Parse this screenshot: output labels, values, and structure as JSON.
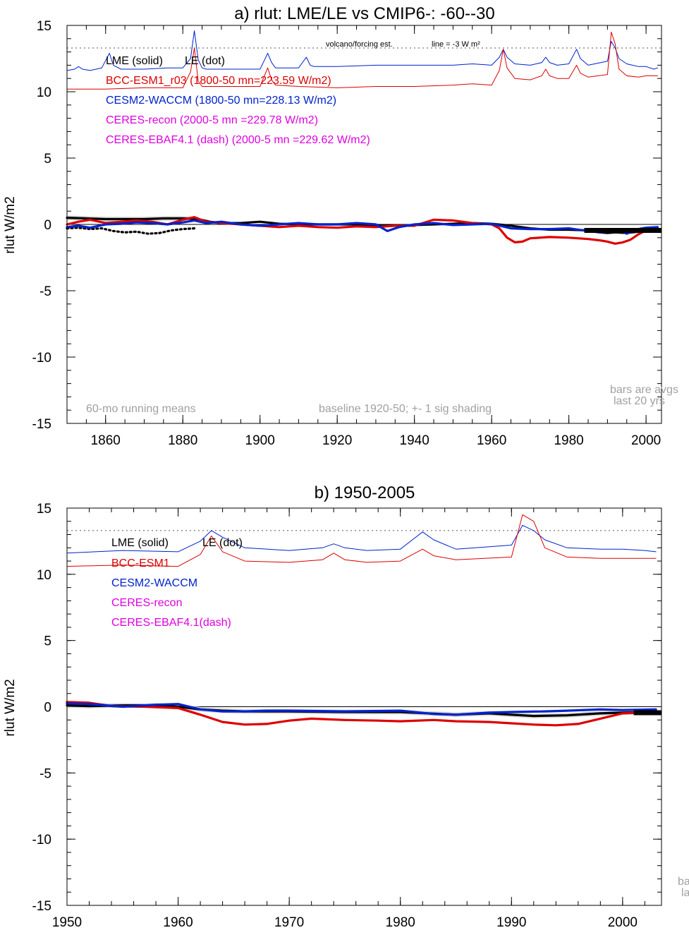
{
  "colors": {
    "lme": "#000000",
    "bcc": "#dd0000",
    "cesm": "#0022cc",
    "ceres": "#e000e0",
    "annot": "#a0a0a0",
    "shade": "#cfcfcf"
  },
  "chart_data": [
    {
      "type": "line",
      "title": "a) rlut: LME/LE vs CMIP6-: -60--30",
      "ylabel": "rlut W/m2",
      "xlim": [
        1850,
        2004
      ],
      "ylim": [
        -15,
        15
      ],
      "xticks": [
        1860,
        1880,
        1900,
        1920,
        1940,
        1960,
        1980,
        2000
      ],
      "yticks": [
        15,
        10,
        5,
        0,
        -5,
        -10,
        -15
      ],
      "ytick_labels": [
        "15",
        "10",
        "5",
        "0",
        "-5",
        "-10",
        "-15"
      ],
      "reference_line": 13.3,
      "reference_label_left": "volcano/forcing est.",
      "reference_label_right": "line = -3 W m²",
      "legend": {
        "header_lme": "LME (solid)",
        "header_le": "LE (dot)",
        "bcc": "BCC-ESM1_r03 (1800-50 mn=223.59 W/m2)",
        "cesm": "CESM2-WACCM (1800-50 mn=228.13 W/m2)",
        "ceres_recon": "CERES-recon (2000-5 mn =229.78 W/m2)",
        "ceres_ebaf": "CERES-EBAF4.1 (dash) (2000-5 mn =229.62 W/m2)"
      },
      "notes": {
        "running": "60-mo running means",
        "baseline": "baseline 1920-50; +- 1 sig shading",
        "bars1": "bars are avgs",
        "bars2": "last 20 yrs"
      },
      "series": [
        {
          "name": "LME (solid)",
          "color_key": "lme",
          "width": 3.2,
          "x": [
            1850,
            1855,
            1860,
            1865,
            1870,
            1875,
            1880,
            1884,
            1887,
            1890,
            1895,
            1900,
            1905,
            1910,
            1915,
            1920,
            1925,
            1930,
            1935,
            1940,
            1945,
            1950,
            1955,
            1960,
            1965,
            1970,
            1975,
            1980,
            1985,
            1988,
            1990,
            1992,
            1995,
            1998,
            2000,
            2003
          ],
          "y": [
            0.5,
            0.45,
            0.4,
            0.4,
            0.4,
            0.45,
            0.45,
            0.4,
            0.2,
            0.1,
            0.1,
            0.2,
            0.05,
            0.0,
            0.0,
            0.0,
            0.0,
            -0.05,
            -0.1,
            -0.05,
            0.0,
            0.05,
            0.1,
            0.05,
            -0.1,
            -0.3,
            -0.4,
            -0.4,
            -0.45,
            -0.6,
            -0.65,
            -0.6,
            -0.65,
            -0.55,
            -0.5,
            -0.45
          ]
        },
        {
          "name": "LE (dot)",
          "color_key": "lme",
          "width": 3.2,
          "dash": "2 4",
          "x": [
            1850,
            1853,
            1856,
            1859,
            1862,
            1865,
            1868,
            1871,
            1874,
            1877,
            1880,
            1883
          ],
          "y": [
            -0.3,
            -0.25,
            -0.35,
            -0.3,
            -0.5,
            -0.6,
            -0.55,
            -0.7,
            -0.65,
            -0.45,
            -0.35,
            -0.3
          ]
        },
        {
          "name": "BCC-ESM1",
          "color_key": "bcc",
          "width": 3.2,
          "x": [
            1850,
            1853,
            1856,
            1860,
            1864,
            1868,
            1872,
            1876,
            1880,
            1883,
            1886,
            1890,
            1895,
            1900,
            1905,
            1910,
            1915,
            1920,
            1925,
            1930,
            1935,
            1940,
            1945,
            1950,
            1955,
            1960,
            1962,
            1964,
            1966,
            1968,
            1970,
            1975,
            1980,
            1985,
            1988,
            1990,
            1992,
            1994,
            1996,
            1998,
            2000,
            2003
          ],
          "y": [
            0.0,
            0.2,
            0.35,
            0.1,
            0.2,
            0.3,
            0.2,
            0.0,
            0.35,
            0.55,
            0.2,
            0.1,
            0.0,
            -0.1,
            -0.2,
            -0.1,
            -0.2,
            -0.25,
            -0.15,
            -0.2,
            -0.1,
            -0.1,
            0.35,
            0.3,
            0.1,
            0.0,
            -0.3,
            -1.0,
            -1.35,
            -1.3,
            -1.05,
            -0.95,
            -1.0,
            -1.1,
            -1.2,
            -1.3,
            -1.45,
            -1.35,
            -1.15,
            -0.75,
            -0.45,
            -0.35
          ]
        },
        {
          "name": "CESM2-WACCM",
          "color_key": "cesm",
          "width": 3.2,
          "x": [
            1850,
            1853,
            1856,
            1860,
            1864,
            1868,
            1872,
            1876,
            1880,
            1883,
            1886,
            1890,
            1895,
            1900,
            1905,
            1910,
            1915,
            1920,
            1925,
            1930,
            1933,
            1936,
            1940,
            1945,
            1950,
            1955,
            1960,
            1965,
            1970,
            1975,
            1980,
            1985,
            1988,
            1990,
            1993,
            1995,
            1998,
            2000,
            2003
          ],
          "y": [
            -0.2,
            -0.1,
            -0.25,
            0.0,
            0.05,
            0.15,
            0.1,
            0.0,
            0.15,
            0.3,
            0.1,
            0.2,
            0.0,
            -0.1,
            0.0,
            0.1,
            0.0,
            0.0,
            0.1,
            0.0,
            -0.5,
            -0.2,
            0.0,
            0.1,
            -0.05,
            0.0,
            0.05,
            -0.3,
            -0.35,
            -0.35,
            -0.3,
            -0.5,
            -0.6,
            -0.55,
            -0.4,
            -0.7,
            -0.35,
            -0.25,
            -0.2
          ]
        },
        {
          "name": "CESM2-WACCM forcing",
          "color_key": "cesm",
          "width": 1,
          "x": [
            1850,
            1852,
            1853,
            1854,
            1856,
            1859,
            1861,
            1862,
            1864,
            1870,
            1876,
            1880,
            1882,
            1883,
            1884,
            1885,
            1886,
            1890,
            1900,
            1901,
            1902,
            1903,
            1904,
            1910,
            1912,
            1913,
            1914,
            1920,
            1930,
            1940,
            1950,
            1955,
            1960,
            1962,
            1963,
            1964,
            1966,
            1970,
            1973,
            1974,
            1975,
            1977,
            1980,
            1982,
            1983,
            1985,
            1990,
            1991,
            1992,
            1993,
            1995,
            1998,
            2000,
            2002,
            2003
          ],
          "y": [
            11.6,
            11.7,
            11.9,
            11.7,
            11.6,
            11.8,
            12.9,
            12.0,
            11.7,
            11.7,
            11.8,
            11.8,
            12.5,
            14.6,
            12.4,
            11.8,
            11.7,
            11.7,
            11.7,
            12.3,
            12.9,
            12.2,
            11.8,
            11.8,
            12.6,
            12.0,
            11.9,
            11.9,
            12.0,
            12.0,
            12.0,
            12.1,
            12.0,
            12.6,
            13.2,
            12.6,
            12.1,
            12.0,
            12.2,
            12.6,
            12.2,
            12.0,
            12.1,
            13.2,
            12.5,
            12.0,
            12.3,
            13.8,
            13.3,
            12.5,
            12.1,
            11.9,
            11.9,
            11.7,
            11.8
          ]
        },
        {
          "name": "BCC-ESM1 forcing",
          "color_key": "bcc",
          "width": 1,
          "x": [
            1850,
            1860,
            1870,
            1880,
            1882,
            1883,
            1884,
            1885,
            1886,
            1890,
            1900,
            1902,
            1903,
            1904,
            1910,
            1920,
            1930,
            1940,
            1950,
            1955,
            1960,
            1962,
            1963,
            1964,
            1966,
            1970,
            1973,
            1974,
            1975,
            1977,
            1980,
            1982,
            1983,
            1985,
            1990,
            1991,
            1992,
            1993,
            1995,
            1998,
            2000,
            2003
          ],
          "y": [
            10.2,
            10.2,
            10.3,
            10.3,
            11.5,
            13.3,
            10.8,
            10.4,
            10.4,
            10.4,
            10.4,
            11.8,
            10.9,
            10.5,
            10.4,
            10.3,
            10.4,
            10.4,
            10.5,
            10.6,
            10.5,
            11.6,
            13.2,
            11.8,
            11.0,
            10.9,
            11.2,
            11.7,
            11.2,
            11.0,
            11.0,
            12.0,
            11.4,
            11.1,
            11.3,
            14.5,
            13.6,
            11.7,
            11.2,
            11.1,
            11.2,
            11.2
          ]
        }
      ]
    },
    {
      "type": "line",
      "title": "b) 1950-2005",
      "ylabel": "rlut W/m2",
      "xlim": [
        1950,
        2003.5
      ],
      "ylim": [
        -15,
        15
      ],
      "xticks": [
        1950,
        1960,
        1970,
        1980,
        1990,
        2000
      ],
      "yticks": [
        15,
        10,
        5,
        0,
        -5,
        -10,
        -15
      ],
      "ytick_labels": [
        "15",
        "10",
        "5",
        "0",
        "-5",
        "-10",
        "-15"
      ],
      "reference_line": 13.3,
      "legend": {
        "header_lme": "LME (solid)",
        "header_le": "LE (dot)",
        "bcc": "BCC-ESM1",
        "cesm": "CESM2-WACCM",
        "ceres_recon": "CERES-recon",
        "ceres_ebaf": "CERES-EBAF4.1(dash)"
      },
      "notes": {
        "bars1": "ba",
        "bars2": "la"
      },
      "series": [
        {
          "name": "LME (solid)",
          "color_key": "lme",
          "width": 3.2,
          "x": [
            1950,
            1952,
            1955,
            1958,
            1960,
            1962,
            1964,
            1966,
            1970,
            1975,
            1980,
            1985,
            1988,
            1990,
            1992,
            1995,
            1998,
            2000,
            2003
          ],
          "y": [
            0.1,
            0.05,
            0.1,
            0.1,
            0.0,
            -0.2,
            -0.3,
            -0.35,
            -0.35,
            -0.4,
            -0.4,
            -0.6,
            -0.5,
            -0.6,
            -0.7,
            -0.65,
            -0.5,
            -0.45,
            -0.4
          ]
        },
        {
          "name": "BCC-ESM1",
          "color_key": "bcc",
          "width": 3.2,
          "x": [
            1950,
            1952,
            1954,
            1957,
            1960,
            1962,
            1964,
            1966,
            1968,
            1970,
            1972,
            1975,
            1978,
            1980,
            1983,
            1985,
            1988,
            1990,
            1992,
            1994,
            1996,
            1998,
            2000,
            2003
          ],
          "y": [
            0.35,
            0.3,
            0.05,
            0.0,
            -0.1,
            -0.6,
            -1.15,
            -1.35,
            -1.3,
            -1.05,
            -0.9,
            -1.0,
            -1.05,
            -1.1,
            -1.0,
            -1.1,
            -1.15,
            -1.25,
            -1.35,
            -1.4,
            -1.3,
            -0.9,
            -0.5,
            -0.4
          ]
        },
        {
          "name": "CESM2-WACCM",
          "color_key": "cesm",
          "width": 3.2,
          "x": [
            1950,
            1952,
            1955,
            1958,
            1960,
            1962,
            1964,
            1966,
            1968,
            1970,
            1975,
            1980,
            1983,
            1985,
            1988,
            1990,
            1993,
            1995,
            1998,
            2000,
            2003
          ],
          "y": [
            0.25,
            0.2,
            0.0,
            0.15,
            0.2,
            -0.2,
            -0.35,
            -0.35,
            -0.3,
            -0.3,
            -0.35,
            -0.3,
            -0.55,
            -0.6,
            -0.45,
            -0.4,
            -0.35,
            -0.3,
            -0.2,
            -0.25,
            -0.2
          ]
        },
        {
          "name": "CESM2-WACCM forcing",
          "color_key": "cesm",
          "width": 1,
          "x": [
            1950,
            1955,
            1960,
            1962,
            1963,
            1964,
            1966,
            1970,
            1973,
            1974,
            1975,
            1977,
            1980,
            1982,
            1983,
            1985,
            1990,
            1991,
            1992,
            1993,
            1995,
            1998,
            2000,
            2002,
            2003
          ],
          "y": [
            11.6,
            11.8,
            11.7,
            12.5,
            13.3,
            12.8,
            12.0,
            11.8,
            12.0,
            12.3,
            12.0,
            11.8,
            11.9,
            13.2,
            12.6,
            11.9,
            12.2,
            13.7,
            13.3,
            12.6,
            12.0,
            11.9,
            11.9,
            11.8,
            11.7
          ]
        },
        {
          "name": "BCC-ESM1 forcing",
          "color_key": "bcc",
          "width": 1,
          "x": [
            1950,
            1955,
            1960,
            1962,
            1963,
            1964,
            1966,
            1970,
            1973,
            1974,
            1975,
            1977,
            1980,
            1982,
            1983,
            1985,
            1990,
            1991,
            1992,
            1993,
            1995,
            1998,
            2000,
            2003
          ],
          "y": [
            10.6,
            10.7,
            10.6,
            11.5,
            12.9,
            11.7,
            11.0,
            10.9,
            11.1,
            11.6,
            11.1,
            10.9,
            11.0,
            11.9,
            11.4,
            11.1,
            11.3,
            14.5,
            14.0,
            12.0,
            11.3,
            11.2,
            11.2,
            11.2
          ]
        }
      ]
    }
  ]
}
